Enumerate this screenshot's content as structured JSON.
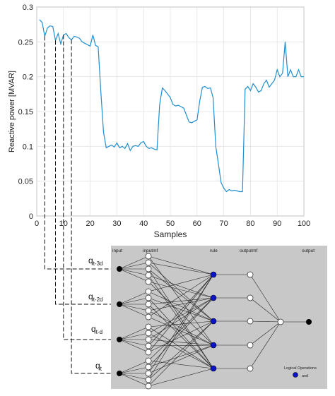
{
  "chart_data": {
    "type": "line",
    "xlabel": "Samples",
    "ylabel": "Reactive power [MVAR]",
    "xlim": [
      0,
      100
    ],
    "ylim": [
      0,
      0.3
    ],
    "xticks": [
      "0",
      "10",
      "20",
      "30",
      "40",
      "50",
      "60",
      "70",
      "80",
      "90",
      "100"
    ],
    "yticks": [
      "0",
      "0.05",
      "0.1",
      "0.15",
      "0.2",
      "0.25",
      "0.3"
    ],
    "grid": true,
    "series_color": "#1f8fd0",
    "x": [
      1,
      2,
      3,
      4,
      5,
      6,
      7,
      8,
      9,
      10,
      11,
      12,
      13,
      14,
      15,
      16,
      17,
      18,
      19,
      20,
      21,
      22,
      23,
      24,
      25,
      26,
      27,
      28,
      29,
      30,
      31,
      32,
      33,
      34,
      35,
      36,
      37,
      38,
      39,
      40,
      41,
      42,
      43,
      44,
      45,
      46,
      47,
      48,
      49,
      50,
      51,
      52,
      53,
      54,
      55,
      56,
      57,
      58,
      59,
      60,
      61,
      62,
      63,
      64,
      65,
      66,
      67,
      68,
      69,
      70,
      71,
      72,
      73,
      74,
      75,
      76,
      77,
      78,
      79,
      80,
      81,
      82,
      83,
      84,
      85,
      86,
      87,
      88,
      89,
      90,
      91,
      92,
      93,
      94,
      95,
      96,
      97,
      98,
      99,
      100
    ],
    "y": [
      0.282,
      0.278,
      0.258,
      0.27,
      0.273,
      0.272,
      0.252,
      0.262,
      0.247,
      0.26,
      0.262,
      0.256,
      0.253,
      0.258,
      0.257,
      0.255,
      0.25,
      0.248,
      0.246,
      0.244,
      0.26,
      0.245,
      0.243,
      0.178,
      0.12,
      0.098,
      0.1,
      0.102,
      0.099,
      0.105,
      0.098,
      0.1,
      0.097,
      0.104,
      0.094,
      0.1,
      0.101,
      0.1,
      0.105,
      0.107,
      0.1,
      0.097,
      0.098,
      0.096,
      0.095,
      0.16,
      0.184,
      0.18,
      0.175,
      0.17,
      0.16,
      0.158,
      0.159,
      0.157,
      0.155,
      0.145,
      0.135,
      0.134,
      0.136,
      0.138,
      0.165,
      0.185,
      0.186,
      0.183,
      0.184,
      0.17,
      0.1,
      0.075,
      0.048,
      0.04,
      0.035,
      0.038,
      0.036,
      0.037,
      0.036,
      0.035,
      0.035,
      0.182,
      0.186,
      0.18,
      0.19,
      0.185,
      0.178,
      0.18,
      0.19,
      0.195,
      0.185,
      0.19,
      0.195,
      0.21,
      0.2,
      0.205,
      0.25,
      0.2,
      0.21,
      0.2,
      0.2,
      0.21,
      0.2,
      0.2
    ]
  },
  "diagram": {
    "background": "#c8c8c8",
    "column_labels": {
      "input": "input",
      "inputmf": "inputmf",
      "rule": "rule",
      "outputmf": "outputmf",
      "output": "output"
    },
    "inputs": [
      {
        "label": "q",
        "sub": "t-3d"
      },
      {
        "label": "q",
        "sub": "t-2d"
      },
      {
        "label": "q",
        "sub": "t-d"
      },
      {
        "label": "q",
        "sub": "t"
      }
    ],
    "legend_title": "Logical Operations",
    "legend_item": "and",
    "rule_color": "#0b14c8"
  }
}
